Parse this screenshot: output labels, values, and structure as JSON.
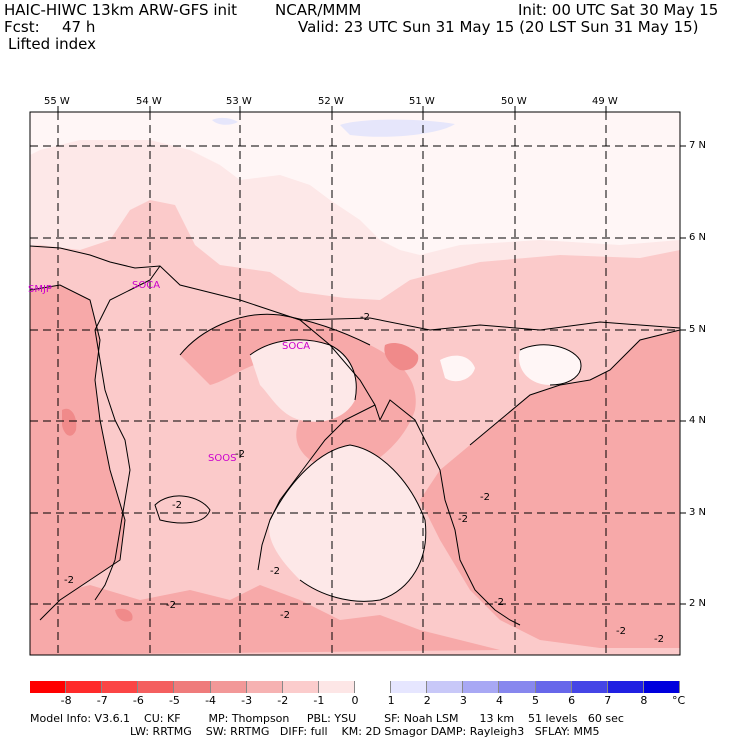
{
  "header": {
    "model": "HAIC-HIWC 13km ARW-GFS init",
    "org": "NCAR/MMM",
    "init": "Init: 00 UTC Sat 30 May 15",
    "fcst_label": "Fcst:",
    "fcst_value": "47 h",
    "valid": "Valid: 23 UTC Sun 31 May 15 (20 LST Sun 31 May 15)",
    "field": "Lifted index"
  },
  "map": {
    "lon_labels": [
      "55 W",
      "54 W",
      "53 W",
      "52 W",
      "51 W",
      "50 W",
      "49 W"
    ],
    "lat_labels": [
      "7 N",
      "6 N",
      "5 N",
      "4 N",
      "3 N",
      "2 N"
    ],
    "stations": [
      "SMJP",
      "SOCA",
      "SOCA",
      "SOOS"
    ],
    "contour_label": "-2",
    "colors": {
      "frame": "#000000",
      "coast": "#000000",
      "level_0_to_m1": "#fde8e8",
      "level_m1_to_m2": "#fbcaca",
      "level_m2_to_m3": "#f7a9a9",
      "level_m3_to_m4": "#f08a8a",
      "positive": "#e6e6fb",
      "station": "#cc00cc"
    }
  },
  "colorbar": {
    "ticks": [
      "-8",
      "-7",
      "-6",
      "-5",
      "-4",
      "-3",
      "-2",
      "-1",
      "0",
      "1",
      "2",
      "3",
      "4",
      "5",
      "6",
      "7",
      "8"
    ],
    "unit": "°C",
    "colors": [
      "#ff0000",
      "#ff2a2a",
      "#fb4545",
      "#f45f5f",
      "#ef7b7b",
      "#f29898",
      "#f6b2b2",
      "#fbcccc",
      "#fde6e6",
      "#ffffff",
      "#e6e6ff",
      "#c8c8f8",
      "#a8a8f4",
      "#8787ee",
      "#6767ea",
      "#4545e6",
      "#2020e2",
      "#0000dd"
    ]
  },
  "footer": {
    "line1": "Model Info: V3.6.1    CU: KF        MP: Thompson     PBL: YSU        SF: Noah LSM      13 km    51 levels   60 sec",
    "line2": "LW: RRTMG    SW: RRTMG   DIFF: full    KM: 2D Smagor DAMP: Rayleigh3   SFLAY: MM5"
  }
}
